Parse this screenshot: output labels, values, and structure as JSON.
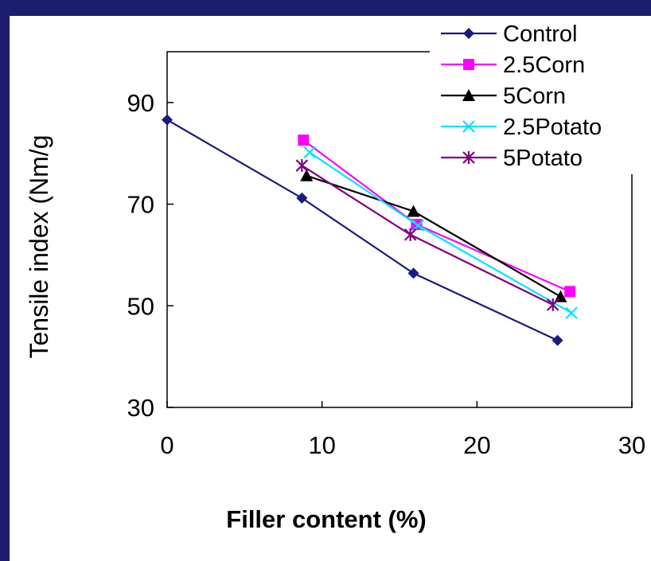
{
  "chart_data": {
    "type": "line",
    "xlabel": "Filler content (%)",
    "ylabel": "Tensile index (Nm/g",
    "xlim": [
      0,
      30
    ],
    "ylim": [
      30,
      100
    ],
    "xticks": [
      0,
      10,
      20,
      30
    ],
    "yticks": [
      30,
      50,
      70,
      90
    ],
    "grid": false,
    "legend_position": "top-right",
    "series": [
      {
        "name": "Control",
        "color": "#1a1a80",
        "marker": "diamond",
        "x": [
          0,
          8.7,
          15.9,
          25.2
        ],
        "y": [
          86.6,
          71.2,
          56.4,
          43.2
        ]
      },
      {
        "name": "2.5Corn",
        "color": "#ff00ff",
        "marker": "square",
        "x": [
          8.8,
          16.1,
          26.0
        ],
        "y": [
          82.6,
          66.0,
          52.8
        ]
      },
      {
        "name": "5Corn",
        "color": "#000000",
        "marker": "triangle",
        "x": [
          9.0,
          15.9,
          25.4
        ],
        "y": [
          75.6,
          68.6,
          51.8
        ]
      },
      {
        "name": "2.5Potato",
        "color": "#00e5ff",
        "marker": "x",
        "x": [
          9.2,
          16.2,
          26.1
        ],
        "y": [
          80.2,
          65.8,
          48.6
        ]
      },
      {
        "name": "5Potato",
        "color": "#800080",
        "marker": "star",
        "x": [
          8.7,
          15.7,
          24.9
        ],
        "y": [
          77.6,
          64.0,
          50.2
        ]
      }
    ]
  }
}
